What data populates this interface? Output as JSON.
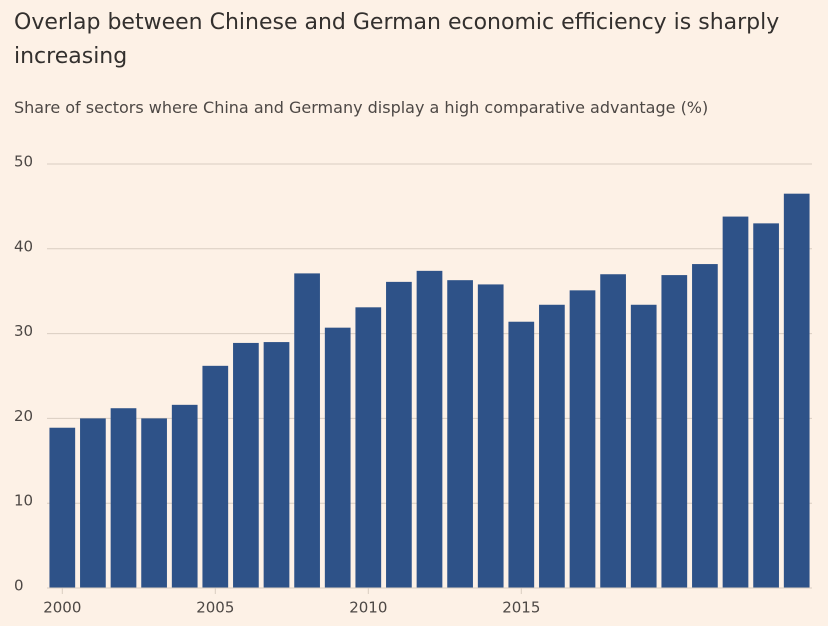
{
  "chart_data": {
    "type": "bar",
    "title": "Overlap between Chinese and German economic efficiency is sharply increasing",
    "subtitle": "Share of sectors where China and Germany display a high comparative advantage (%)",
    "categories": [
      "2000",
      null,
      null,
      null,
      null,
      "2005",
      null,
      null,
      null,
      null,
      "2010",
      null,
      null,
      null,
      null,
      "2015",
      null,
      null,
      null,
      null,
      null,
      null,
      null,
      null,
      null
    ],
    "values": [
      18.9,
      20.0,
      21.2,
      20.0,
      21.6,
      26.2,
      28.9,
      29.0,
      37.1,
      30.7,
      33.1,
      36.1,
      37.4,
      36.3,
      35.8,
      31.4,
      33.4,
      35.1,
      37.0,
      33.4,
      36.9,
      38.2,
      43.8,
      43.0,
      46.5
    ],
    "color": "#2e5288",
    "ylim": [
      0,
      50
    ],
    "yticks": [
      0,
      10,
      20,
      30,
      40,
      50
    ],
    "grid": true
  }
}
